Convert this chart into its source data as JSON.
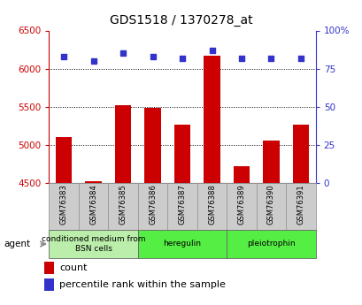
{
  "title": "GDS1518 / 1370278_at",
  "samples": [
    "GSM76383",
    "GSM76384",
    "GSM76385",
    "GSM76386",
    "GSM76387",
    "GSM76388",
    "GSM76389",
    "GSM76390",
    "GSM76391"
  ],
  "counts": [
    5100,
    4520,
    5520,
    5480,
    5260,
    6170,
    4720,
    5060,
    5260
  ],
  "percentiles": [
    83,
    80,
    85,
    83,
    82,
    87,
    82,
    82,
    82
  ],
  "ylim_left": [
    4500,
    6500
  ],
  "ylim_right": [
    0,
    100
  ],
  "yticks_left": [
    4500,
    5000,
    5500,
    6000,
    6500
  ],
  "yticks_right": [
    0,
    25,
    50,
    75,
    100
  ],
  "ytick_labels_right": [
    "0",
    "25",
    "50",
    "75",
    "100%"
  ],
  "bar_color": "#cc0000",
  "dot_color": "#3333cc",
  "bar_bottom": 4500,
  "groups": [
    {
      "label": "conditioned medium from\nBSN cells",
      "start": 0,
      "end": 3,
      "color": "#bbeeaa"
    },
    {
      "label": "heregulin",
      "start": 3,
      "end": 6,
      "color": "#55ee44"
    },
    {
      "label": "pleiotrophin",
      "start": 6,
      "end": 9,
      "color": "#55ee44"
    }
  ],
  "agent_label": "agent",
  "legend_count_label": "count",
  "legend_pct_label": "percentile rank within the sample",
  "axis_color_left": "#cc0000",
  "axis_color_right": "#3333cc",
  "sample_box_color": "#cccccc",
  "sample_box_edge": "#999999"
}
